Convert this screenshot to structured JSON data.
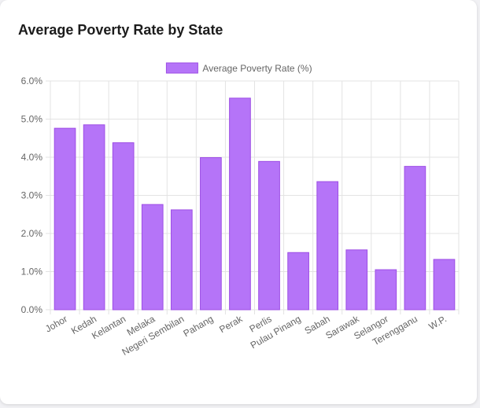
{
  "title": "Average Poverty Rate by State",
  "colors": {
    "bar_fill": "#b574f8",
    "bar_border": "#9d4ee5",
    "grid": "#e3e3e3",
    "tick_text": "#666666"
  },
  "chart_data": {
    "type": "bar",
    "categories": [
      "Johor",
      "Kedah",
      "Kelantan",
      "Melaka",
      "Negeri Sembilan",
      "Pahang",
      "Perak",
      "Perlis",
      "Pulau Pinang",
      "Sabah",
      "Sarawak",
      "Selangor",
      "Terengganu",
      "W.P."
    ],
    "series": [
      {
        "name": "Average Poverty Rate (%)",
        "values": [
          4.76,
          4.85,
          4.38,
          2.76,
          2.62,
          3.99,
          5.55,
          3.89,
          1.5,
          3.36,
          1.57,
          1.05,
          3.76,
          1.32
        ]
      }
    ],
    "ylim": [
      0,
      6
    ],
    "yticks": [
      "0.0%",
      "1.0%",
      "2.0%",
      "3.0%",
      "4.0%",
      "5.0%",
      "6.0%"
    ],
    "grid": true,
    "legend": "top-center",
    "xlabel": "",
    "ylabel": ""
  }
}
